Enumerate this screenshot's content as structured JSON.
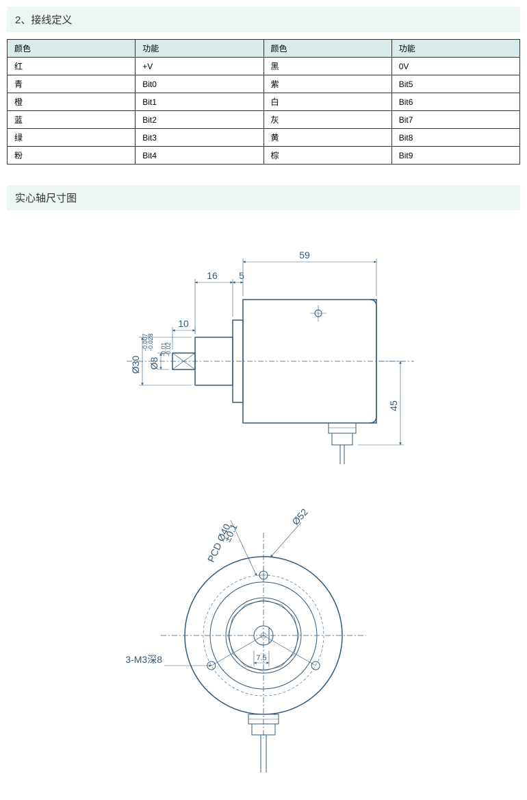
{
  "sections": {
    "wiring": {
      "title": "2、接线定义",
      "headers": [
        "颜色",
        "功能",
        "颜色",
        "功能"
      ],
      "rows": [
        [
          "红",
          "+V",
          "黑",
          "0V"
        ],
        [
          "青",
          "Bit0",
          "紫",
          "Bit5"
        ],
        [
          "橙",
          "Bit1",
          "白",
          "Bit6"
        ],
        [
          "蓝",
          "Bit2",
          "灰",
          "Bit7"
        ],
        [
          "绿",
          "Bit3",
          "黄",
          "Bit8"
        ],
        [
          "粉",
          "Bit4",
          "棕",
          "Bit9"
        ]
      ]
    },
    "dimension": {
      "title": "实心轴尺寸图"
    }
  },
  "side_view": {
    "width_total": "59",
    "shaft_ext": "16",
    "step": "5",
    "shaft_len": "10",
    "height": "45",
    "dia30": "Ø30",
    "dia30_tol1": "-0.007",
    "dia30_tol2": "-0.028",
    "dia8": "Ø8",
    "dia8_tol1": "-0.01",
    "dia8_tol2": "-0.02"
  },
  "front_view": {
    "dia52": "Ø52",
    "pcd": "PCD Ø40",
    "pcd_tol": "±0.1",
    "mount": "3-M3深8",
    "center_dim": "7.5"
  },
  "colors": {
    "header_bg": "#eef5f5",
    "table_header_bg": "#d9eceb",
    "drawing_stroke": "#325a7a",
    "border": "#333333"
  }
}
